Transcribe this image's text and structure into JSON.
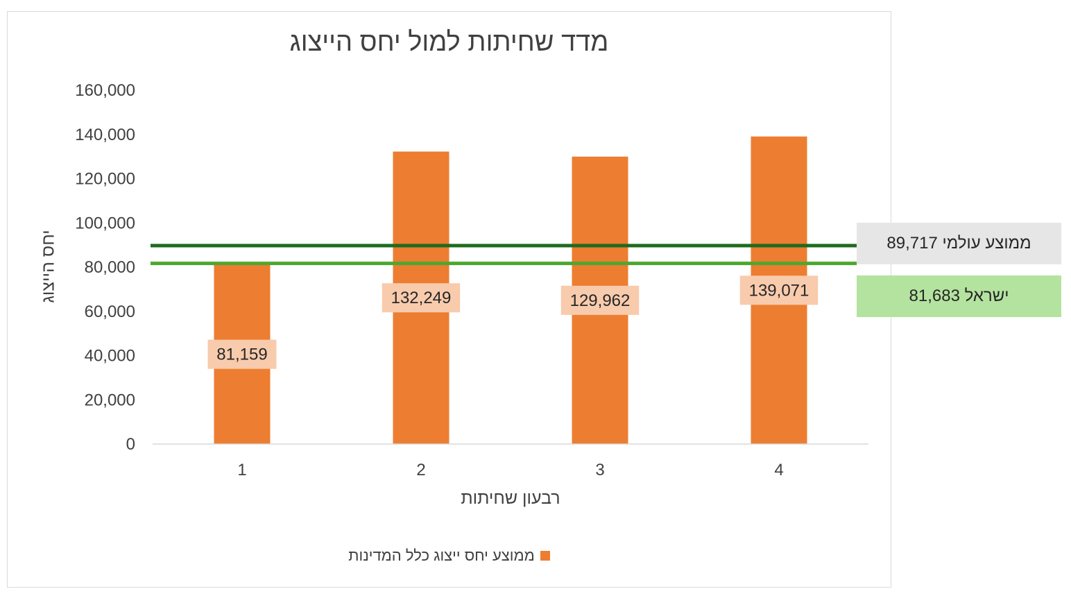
{
  "chart_data": {
    "type": "bar",
    "title": "מדד שחיתות למול יחס הייצוג",
    "xlabel": "רבעון שחיתות",
    "ylabel": "יחס הייצוג",
    "categories": [
      "1",
      "2",
      "3",
      "4"
    ],
    "series": [
      {
        "name": "ממוצע יחס ייצוג כלל המדינות",
        "values": [
          81159,
          132249,
          129962,
          139071
        ],
        "data_labels": [
          "81,159",
          "132,249",
          "129,962",
          "139,071"
        ],
        "color": "#ED7D31",
        "label_bg": "#F8CBAD"
      }
    ],
    "ylim": [
      0,
      160000
    ],
    "yticks": [
      0,
      20000,
      40000,
      60000,
      80000,
      100000,
      120000,
      140000,
      160000
    ],
    "ytick_labels": [
      "0",
      "20,000",
      "40,000",
      "60,000",
      "80,000",
      "100,000",
      "120,000",
      "140,000",
      "160,000"
    ],
    "grid": false,
    "legend_position": "bottom",
    "reference_lines": [
      {
        "id": "world",
        "value": 89717,
        "label": "ממוצע עולמי 89,717",
        "color": "#1E6B1E",
        "box_color": "#E7E6E6"
      },
      {
        "id": "israel",
        "value": 81683,
        "label": "ישראל 81,683",
        "color": "#4EA72E",
        "box_color": "#B4E3A0"
      }
    ]
  }
}
